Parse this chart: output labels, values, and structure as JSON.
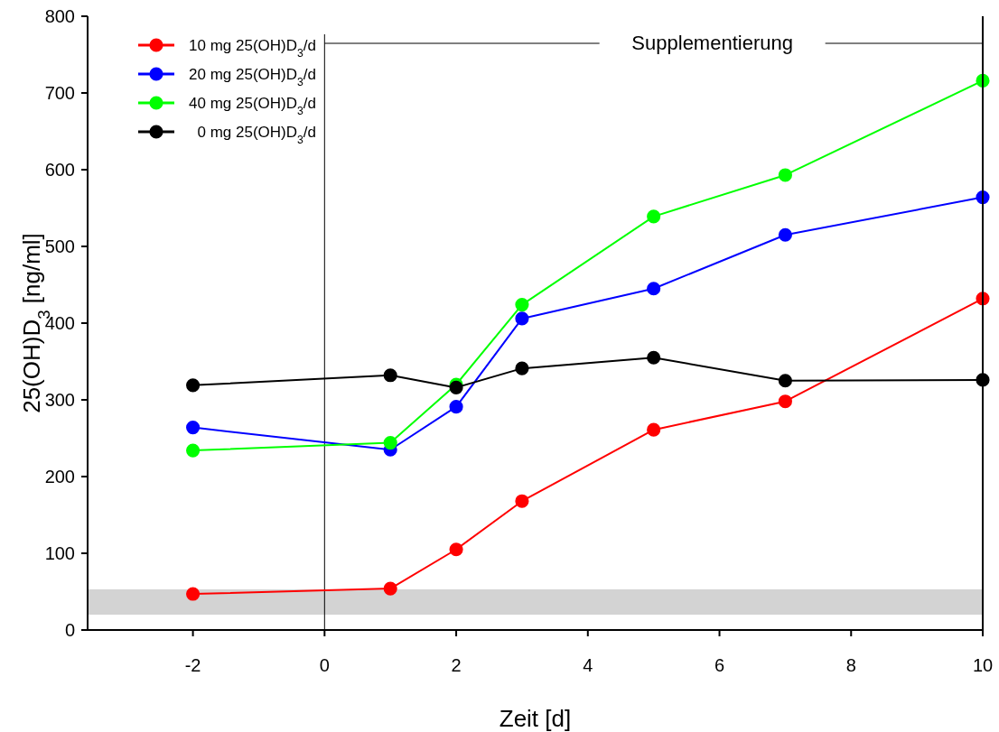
{
  "chart_data": {
    "type": "line",
    "xlabel": "Zeit [d]",
    "ylabel": "25(OH)D$_{3}$ [ng/ml]",
    "x": [
      -2,
      1,
      2,
      3,
      5,
      7,
      10
    ],
    "series": [
      {
        "name": "10 mg 25(OH)D$_{3}$/d",
        "color": "#ff0000",
        "values": [
          47,
          54,
          105,
          168,
          261,
          298,
          432
        ]
      },
      {
        "name": "20 mg 25(OH)D$_{3}$/d",
        "color": "#0000ff",
        "values": [
          264,
          235,
          291,
          406,
          445,
          515,
          564
        ]
      },
      {
        "name": "40 mg 25(OH)D$_{3}$/d",
        "color": "#00ff00",
        "values": [
          234,
          244,
          320,
          424,
          539,
          593,
          716
        ]
      },
      {
        "name": "0 mg 25(OH)D$_{3}$/d",
        "color": "#000000",
        "values": [
          319,
          332,
          316,
          341,
          355,
          325,
          326
        ]
      }
    ],
    "xlim": [
      -3.6,
      10
    ],
    "xticks": [
      -2,
      0,
      2,
      4,
      6,
      8,
      10
    ],
    "ylim": [
      0,
      800
    ],
    "yticks": [
      0,
      100,
      200,
      300,
      400,
      500,
      600,
      700,
      800
    ],
    "ref_lines": [
      {
        "axis": "x",
        "value": 0,
        "color": "#000000"
      }
    ],
    "bands": [
      {
        "axis": "y",
        "from": 20,
        "to": 53,
        "color": "#d3d3d3"
      }
    ],
    "annotations": [
      "Supplementierung"
    ],
    "legend": "top left",
    "marker": "circle",
    "line_style": "solid",
    "grid": false
  }
}
